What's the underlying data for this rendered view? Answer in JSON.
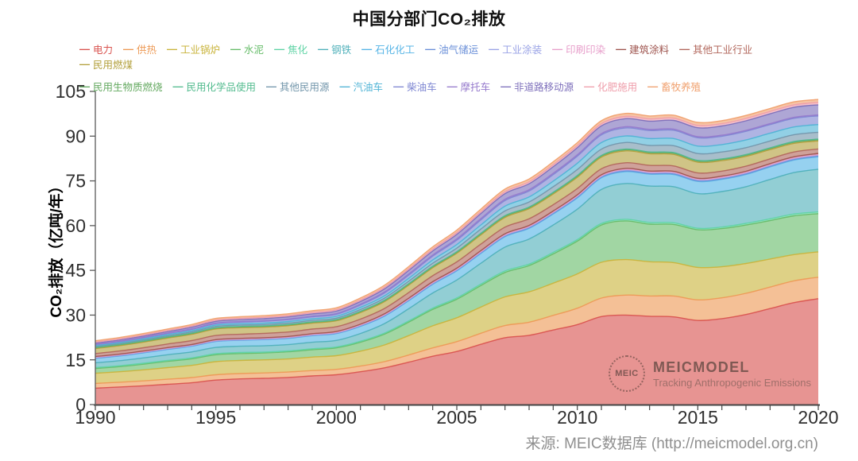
{
  "title": "中国分部门CO₂排放",
  "legend_rows": [
    13,
    9
  ],
  "y_axis": {
    "label": "CO₂排放（亿吨/年）",
    "ticks": [
      0,
      15,
      30,
      45,
      60,
      75,
      90,
      105
    ],
    "max": 105
  },
  "x_axis": {
    "start": 1990,
    "end": 2020,
    "labeled_ticks": [
      1990,
      1995,
      2000,
      2005,
      2010,
      2015,
      2020
    ],
    "minor_tick_every": 1
  },
  "source": "来源: MEIC数据库 (http://meicmodel.org.cn)",
  "watermark": {
    "logo_text": "MEIC",
    "name": "MEICMODEL",
    "tagline": "Tracking Anthropogenic Emissions"
  },
  "chart_data": {
    "type": "area",
    "stacked": true,
    "title": "中国分部门CO₂排放",
    "xlabel": "",
    "ylabel": "CO₂排放（亿吨/年）",
    "xlim": [
      1990,
      2020
    ],
    "ylim": [
      0,
      105
    ],
    "grid": false,
    "legend_position": "top",
    "x": [
      1990,
      1991,
      1992,
      1993,
      1994,
      1995,
      1996,
      1997,
      1998,
      1999,
      2000,
      2001,
      2002,
      2003,
      2004,
      2005,
      2006,
      2007,
      2008,
      2009,
      2010,
      2011,
      2012,
      2013,
      2014,
      2015,
      2016,
      2017,
      2018,
      2019,
      2020
    ],
    "series": [
      {
        "key": "power",
        "name": "电力",
        "color": "#d9534f",
        "values": [
          5.5,
          5.9,
          6.3,
          6.8,
          7.3,
          8.2,
          8.6,
          8.8,
          9.1,
          9.6,
          10.0,
          11.0,
          12.3,
          14.2,
          16.2,
          17.8,
          20.2,
          22.4,
          23.2,
          25.0,
          26.8,
          29.5,
          30.0,
          29.6,
          29.4,
          28.2,
          28.8,
          30.2,
          32.2,
          34.2,
          35.5
        ]
      },
      {
        "key": "heating",
        "name": "供热",
        "color": "#ed9a56",
        "values": [
          1.6,
          1.6,
          1.65,
          1.7,
          1.75,
          1.8,
          1.8,
          1.8,
          1.8,
          1.8,
          1.8,
          1.9,
          2.1,
          2.4,
          2.8,
          3.3,
          3.7,
          4.1,
          4.4,
          4.9,
          5.5,
          6.2,
          6.7,
          6.8,
          7.0,
          6.9,
          7.0,
          7.1,
          7.2,
          7.3,
          7.2
        ]
      },
      {
        "key": "industrial-boiler",
        "name": "工业锅炉",
        "color": "#c9b43c",
        "values": [
          3.4,
          3.5,
          3.7,
          3.9,
          4.1,
          4.4,
          4.4,
          4.4,
          4.4,
          4.5,
          4.6,
          5.0,
          5.6,
          6.5,
          7.4,
          8.0,
          8.8,
          9.6,
          10.2,
          10.8,
          11.5,
          12.0,
          11.9,
          11.5,
          11.2,
          10.9,
          10.4,
          10.0,
          9.4,
          8.8,
          8.5
        ]
      },
      {
        "key": "cement",
        "name": "水泥",
        "color": "#67bd6a",
        "values": [
          1.6,
          1.7,
          1.9,
          2.1,
          2.2,
          2.3,
          2.3,
          2.3,
          2.4,
          2.5,
          2.6,
          3.0,
          3.6,
          4.5,
          5.5,
          6.2,
          7.2,
          8.2,
          8.8,
          9.8,
          11.0,
          12.5,
          13.0,
          12.6,
          12.8,
          12.6,
          12.8,
          12.9,
          12.9,
          13.0,
          12.8
        ]
      },
      {
        "key": "coking",
        "name": "焦化",
        "color": "#5fd3a5",
        "values": [
          0.3,
          0.3,
          0.3,
          0.3,
          0.3,
          0.35,
          0.35,
          0.3,
          0.3,
          0.3,
          0.3,
          0.33,
          0.36,
          0.4,
          0.42,
          0.45,
          0.48,
          0.5,
          0.5,
          0.5,
          0.5,
          0.52,
          0.52,
          0.55,
          0.55,
          0.52,
          0.52,
          0.55,
          0.58,
          0.6,
          0.6
        ]
      },
      {
        "key": "steel",
        "name": "钢铁",
        "color": "#4fb0ba",
        "values": [
          1.6,
          1.7,
          1.8,
          1.9,
          2.0,
          2.1,
          2.1,
          2.1,
          2.1,
          2.2,
          2.2,
          2.6,
          3.2,
          4.1,
          5.1,
          6.0,
          7.0,
          8.0,
          8.4,
          9.2,
          10.2,
          11.4,
          12.0,
          12.2,
          12.1,
          11.6,
          11.9,
          12.3,
          13.2,
          13.9,
          14.3
        ]
      },
      {
        "key": "petrochemical",
        "name": "石化化工",
        "color": "#56b4e6",
        "values": [
          1.5,
          1.6,
          1.7,
          1.8,
          1.9,
          2.0,
          2.0,
          2.1,
          2.1,
          2.2,
          2.3,
          2.4,
          2.5,
          2.7,
          2.9,
          3.1,
          3.3,
          3.5,
          3.6,
          3.7,
          3.8,
          3.9,
          4.0,
          4.0,
          4.1,
          4.1,
          4.1,
          4.1,
          4.2,
          4.2,
          4.2
        ]
      },
      {
        "key": "oil-gas-storage",
        "name": "油气储运",
        "color": "#6a8fd8",
        "values": [
          0.1,
          0.1,
          0.1,
          0.1,
          0.1,
          0.1,
          0.1,
          0.1,
          0.1,
          0.1,
          0.1,
          0.12,
          0.13,
          0.14,
          0.15,
          0.16,
          0.17,
          0.18,
          0.18,
          0.19,
          0.2,
          0.2,
          0.2,
          0.2,
          0.2,
          0.2,
          0.2,
          0.2,
          0.2,
          0.2,
          0.2
        ]
      },
      {
        "key": "industrial-coating",
        "name": "工业涂装",
        "color": "#9aa3e6",
        "values": [
          0.1,
          0.1,
          0.1,
          0.1,
          0.1,
          0.1,
          0.1,
          0.1,
          0.1,
          0.12,
          0.13,
          0.14,
          0.16,
          0.18,
          0.2,
          0.2,
          0.22,
          0.24,
          0.25,
          0.26,
          0.28,
          0.28,
          0.3,
          0.3,
          0.3,
          0.3,
          0.3,
          0.3,
          0.3,
          0.3,
          0.3
        ]
      },
      {
        "key": "printing-dyeing",
        "name": "印刷印染",
        "color": "#e79fcb",
        "values": [
          0.2,
          0.2,
          0.2,
          0.2,
          0.2,
          0.2,
          0.2,
          0.2,
          0.2,
          0.2,
          0.2,
          0.2,
          0.2,
          0.2,
          0.2,
          0.2,
          0.2,
          0.2,
          0.2,
          0.2,
          0.2,
          0.2,
          0.2,
          0.2,
          0.2,
          0.2,
          0.2,
          0.2,
          0.2,
          0.2,
          0.2
        ]
      },
      {
        "key": "building-paint",
        "name": "建筑涂料",
        "color": "#9e544e",
        "values": [
          0.2,
          0.2,
          0.2,
          0.2,
          0.2,
          0.22,
          0.22,
          0.22,
          0.24,
          0.24,
          0.25,
          0.26,
          0.28,
          0.3,
          0.32,
          0.33,
          0.34,
          0.35,
          0.35,
          0.35,
          0.35,
          0.35,
          0.35,
          0.35,
          0.35,
          0.35,
          0.36,
          0.38,
          0.4,
          0.4,
          0.4
        ]
      },
      {
        "key": "other-industry",
        "name": "其他工业行业",
        "color": "#b2675c",
        "values": [
          1.0,
          1.05,
          1.1,
          1.2,
          1.3,
          1.4,
          1.4,
          1.45,
          1.5,
          1.55,
          1.6,
          1.7,
          1.8,
          1.9,
          2.0,
          2.1,
          2.2,
          2.2,
          2.2,
          2.1,
          2.1,
          2.0,
          1.9,
          1.9,
          1.8,
          1.8,
          1.7,
          1.7,
          1.6,
          1.6,
          1.5
        ]
      },
      {
        "key": "residential-coal",
        "name": "民用燃煤",
        "color": "#b3a03c",
        "values": [
          1.7,
          1.8,
          1.9,
          2.0,
          2.1,
          2.2,
          2.2,
          2.1,
          2.1,
          2.0,
          2.0,
          2.2,
          2.3,
          2.5,
          2.7,
          2.9,
          3.1,
          3.3,
          3.4,
          3.6,
          3.8,
          3.9,
          4.0,
          3.9,
          3.9,
          3.6,
          3.5,
          3.3,
          3.1,
          2.9,
          2.7
        ]
      },
      {
        "key": "residential-biomass",
        "name": "民用生物质燃烧",
        "color": "#62a85e",
        "values": [
          0.3,
          0.3,
          0.3,
          0.3,
          0.3,
          0.3,
          0.3,
          0.3,
          0.3,
          0.3,
          0.3,
          0.32,
          0.33,
          0.34,
          0.35,
          0.36,
          0.37,
          0.38,
          0.38,
          0.39,
          0.4,
          0.4,
          0.4,
          0.4,
          0.4,
          0.4,
          0.4,
          0.4,
          0.4,
          0.4,
          0.4
        ]
      },
      {
        "key": "residential-chemicals",
        "name": "民用化学品使用",
        "color": "#52bb8e",
        "values": [
          0.1,
          0.1,
          0.1,
          0.1,
          0.1,
          0.1,
          0.1,
          0.1,
          0.1,
          0.1,
          0.1,
          0.11,
          0.12,
          0.13,
          0.14,
          0.15,
          0.15,
          0.16,
          0.16,
          0.17,
          0.18,
          0.18,
          0.19,
          0.19,
          0.2,
          0.2,
          0.2,
          0.2,
          0.2,
          0.2,
          0.2
        ]
      },
      {
        "key": "other-residential",
        "name": "其他民用源",
        "color": "#7396ab",
        "values": [
          0.3,
          0.32,
          0.34,
          0.36,
          0.4,
          0.42,
          0.44,
          0.46,
          0.48,
          0.5,
          0.5,
          0.6,
          0.7,
          0.85,
          1.0,
          1.2,
          1.4,
          1.6,
          1.7,
          1.85,
          2.0,
          2.1,
          2.2,
          2.2,
          2.3,
          2.3,
          2.3,
          2.3,
          2.3,
          2.3,
          2.3
        ]
      },
      {
        "key": "gasoline-vehicle",
        "name": "汽油车",
        "color": "#4fb3d5",
        "values": [
          0.3,
          0.32,
          0.35,
          0.38,
          0.42,
          0.45,
          0.48,
          0.5,
          0.52,
          0.55,
          0.6,
          0.7,
          0.8,
          0.95,
          1.1,
          1.2,
          1.4,
          1.6,
          1.7,
          1.9,
          2.1,
          2.2,
          2.2,
          2.3,
          2.4,
          2.5,
          2.5,
          2.6,
          2.6,
          2.6,
          2.6
        ]
      },
      {
        "key": "diesel-vehicle",
        "name": "柴油车",
        "color": "#7e86d2",
        "values": [
          0.3,
          0.33,
          0.36,
          0.4,
          0.45,
          0.5,
          0.55,
          0.6,
          0.62,
          0.66,
          0.7,
          0.8,
          0.95,
          1.1,
          1.3,
          1.5,
          1.7,
          1.9,
          2.0,
          2.2,
          2.4,
          2.6,
          2.7,
          2.7,
          2.8,
          2.8,
          2.8,
          2.9,
          2.9,
          2.9,
          2.9
        ]
      },
      {
        "key": "motorcycle",
        "name": "摩托车",
        "color": "#9579cc",
        "values": [
          0.1,
          0.1,
          0.12,
          0.13,
          0.15,
          0.17,
          0.18,
          0.2,
          0.21,
          0.22,
          0.24,
          0.27,
          0.3,
          0.33,
          0.36,
          0.4,
          0.4,
          0.42,
          0.42,
          0.42,
          0.42,
          0.4,
          0.4,
          0.38,
          0.36,
          0.35,
          0.33,
          0.32,
          0.3,
          0.3,
          0.3
        ]
      },
      {
        "key": "off-road-mobile",
        "name": "非道路移动源",
        "color": "#7d6fbb",
        "values": [
          0.4,
          0.43,
          0.46,
          0.5,
          0.55,
          0.6,
          0.64,
          0.68,
          0.72,
          0.76,
          0.8,
          0.9,
          1.05,
          1.2,
          1.35,
          1.5,
          1.7,
          1.9,
          2.0,
          2.2,
          2.4,
          2.6,
          2.7,
          2.75,
          2.9,
          3.0,
          3.1,
          3.2,
          3.3,
          3.4,
          3.4
        ]
      },
      {
        "key": "fertilizer",
        "name": "化肥施用",
        "color": "#ef9daa",
        "values": [
          0.35,
          0.36,
          0.37,
          0.38,
          0.4,
          0.42,
          0.43,
          0.44,
          0.45,
          0.46,
          0.48,
          0.5,
          0.52,
          0.55,
          0.58,
          0.6,
          0.62,
          0.65,
          0.67,
          0.7,
          0.72,
          0.74,
          0.75,
          0.75,
          0.77,
          0.78,
          0.78,
          0.79,
          0.8,
          0.8,
          0.8
        ]
      },
      {
        "key": "livestock",
        "name": "畜牧养殖",
        "color": "#f0a06e",
        "values": [
          0.45,
          0.46,
          0.48,
          0.5,
          0.52,
          0.55,
          0.56,
          0.58,
          0.6,
          0.62,
          0.64,
          0.68,
          0.72,
          0.76,
          0.8,
          0.85,
          0.88,
          0.9,
          0.92,
          0.95,
          0.97,
          1.0,
          1.0,
          1.0,
          1.0,
          1.0,
          1.0,
          1.0,
          1.0,
          1.0,
          1.0
        ]
      }
    ]
  }
}
